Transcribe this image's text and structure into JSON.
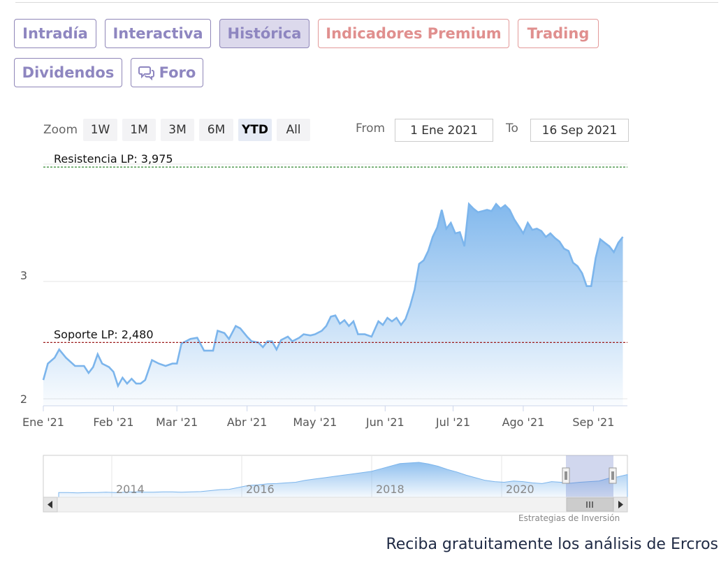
{
  "tabs": [
    {
      "label": "Intradía",
      "style": "purple"
    },
    {
      "label": "Interactiva",
      "style": "purple"
    },
    {
      "label": "Histórica",
      "style": "purple",
      "active": true
    },
    {
      "label": "Indicadores Premium",
      "style": "red"
    },
    {
      "label": "Trading",
      "style": "red"
    },
    {
      "label": "Dividendos",
      "style": "purple"
    },
    {
      "label": "Foro",
      "style": "purple",
      "icon": "chat-bubbles-icon"
    }
  ],
  "zoom": {
    "label": "Zoom",
    "buttons": [
      "1W",
      "1M",
      "3M",
      "6M",
      "YTD",
      "All"
    ],
    "selected": "YTD"
  },
  "range": {
    "from_label": "From",
    "from_value": "1 Ene 2021",
    "to_label": "To",
    "to_value": "16 Sep 2021"
  },
  "chart_data": {
    "type": "area",
    "x_tick_labels": [
      "Ene '21",
      "Feb '21",
      "Mar '21",
      "Abr '21",
      "May '21",
      "Jun '21",
      "Jul '21",
      "Ago '21",
      "Sep '21"
    ],
    "y_tick_labels": [
      "2",
      "3"
    ],
    "ylim": [
      1.95,
      4.0
    ],
    "x_range": [
      "2021-01-01",
      "2021-09-16"
    ],
    "grid": true,
    "series": [
      {
        "color": "#7cb5ec",
        "points": [
          [
            "2021-01-01",
            2.16
          ],
          [
            "2021-01-03",
            2.3
          ],
          [
            "2021-01-06",
            2.35
          ],
          [
            "2021-01-08",
            2.42
          ],
          [
            "2021-01-11",
            2.35
          ],
          [
            "2021-01-15",
            2.28
          ],
          [
            "2021-01-19",
            2.28
          ],
          [
            "2021-01-21",
            2.22
          ],
          [
            "2021-01-23",
            2.27
          ],
          [
            "2021-01-25",
            2.38
          ],
          [
            "2021-01-27",
            2.3
          ],
          [
            "2021-01-30",
            2.27
          ],
          [
            "2021-02-01",
            2.23
          ],
          [
            "2021-02-03",
            2.11
          ],
          [
            "2021-02-05",
            2.18
          ],
          [
            "2021-02-07",
            2.13
          ],
          [
            "2021-02-09",
            2.17
          ],
          [
            "2021-02-11",
            2.13
          ],
          [
            "2021-02-13",
            2.13
          ],
          [
            "2021-02-15",
            2.16
          ],
          [
            "2021-02-18",
            2.33
          ],
          [
            "2021-02-21",
            2.3
          ],
          [
            "2021-02-24",
            2.28
          ],
          [
            "2021-02-27",
            2.3
          ],
          [
            "2021-03-01",
            2.3
          ],
          [
            "2021-03-03",
            2.47
          ],
          [
            "2021-03-07",
            2.51
          ],
          [
            "2021-03-10",
            2.52
          ],
          [
            "2021-03-13",
            2.41
          ],
          [
            "2021-03-17",
            2.41
          ],
          [
            "2021-03-19",
            2.58
          ],
          [
            "2021-03-22",
            2.56
          ],
          [
            "2021-03-24",
            2.51
          ],
          [
            "2021-03-27",
            2.62
          ],
          [
            "2021-03-29",
            2.6
          ],
          [
            "2021-04-01",
            2.53
          ],
          [
            "2021-04-03",
            2.49
          ],
          [
            "2021-04-06",
            2.48
          ],
          [
            "2021-04-08",
            2.44
          ],
          [
            "2021-04-10",
            2.49
          ],
          [
            "2021-04-12",
            2.49
          ],
          [
            "2021-04-14",
            2.42
          ],
          [
            "2021-04-16",
            2.5
          ],
          [
            "2021-04-19",
            2.53
          ],
          [
            "2021-04-21",
            2.49
          ],
          [
            "2021-04-24",
            2.52
          ],
          [
            "2021-04-26",
            2.55
          ],
          [
            "2021-04-29",
            2.54
          ],
          [
            "2021-05-01",
            2.55
          ],
          [
            "2021-05-04",
            2.58
          ],
          [
            "2021-05-06",
            2.62
          ],
          [
            "2021-05-08",
            2.7
          ],
          [
            "2021-05-10",
            2.71
          ],
          [
            "2021-05-12",
            2.64
          ],
          [
            "2021-05-14",
            2.67
          ],
          [
            "2021-05-16",
            2.62
          ],
          [
            "2021-05-18",
            2.66
          ],
          [
            "2021-05-20",
            2.55
          ],
          [
            "2021-05-23",
            2.55
          ],
          [
            "2021-05-26",
            2.53
          ],
          [
            "2021-05-29",
            2.66
          ],
          [
            "2021-05-31",
            2.63
          ],
          [
            "2021-06-02",
            2.69
          ],
          [
            "2021-06-04",
            2.66
          ],
          [
            "2021-06-06",
            2.69
          ],
          [
            "2021-06-08",
            2.63
          ],
          [
            "2021-06-10",
            2.68
          ],
          [
            "2021-06-12",
            2.79
          ],
          [
            "2021-06-14",
            2.93
          ],
          [
            "2021-06-16",
            3.15
          ],
          [
            "2021-06-18",
            3.18
          ],
          [
            "2021-06-20",
            3.26
          ],
          [
            "2021-06-22",
            3.38
          ],
          [
            "2021-06-24",
            3.46
          ],
          [
            "2021-06-26",
            3.61
          ],
          [
            "2021-06-28",
            3.45
          ],
          [
            "2021-06-30",
            3.5
          ],
          [
            "2021-07-02",
            3.41
          ],
          [
            "2021-07-04",
            3.42
          ],
          [
            "2021-07-06",
            3.3
          ],
          [
            "2021-07-08",
            3.66
          ],
          [
            "2021-07-10",
            3.62
          ],
          [
            "2021-07-12",
            3.59
          ],
          [
            "2021-07-14",
            3.6
          ],
          [
            "2021-07-16",
            3.61
          ],
          [
            "2021-07-18",
            3.6
          ],
          [
            "2021-07-20",
            3.66
          ],
          [
            "2021-07-22",
            3.62
          ],
          [
            "2021-07-24",
            3.65
          ],
          [
            "2021-07-26",
            3.61
          ],
          [
            "2021-07-28",
            3.53
          ],
          [
            "2021-07-30",
            3.47
          ],
          [
            "2021-08-01",
            3.41
          ],
          [
            "2021-08-03",
            3.5
          ],
          [
            "2021-08-05",
            3.44
          ],
          [
            "2021-08-07",
            3.45
          ],
          [
            "2021-08-09",
            3.43
          ],
          [
            "2021-08-11",
            3.38
          ],
          [
            "2021-08-13",
            3.41
          ],
          [
            "2021-08-15",
            3.37
          ],
          [
            "2021-08-17",
            3.34
          ],
          [
            "2021-08-19",
            3.28
          ],
          [
            "2021-08-21",
            3.26
          ],
          [
            "2021-08-23",
            3.16
          ],
          [
            "2021-08-25",
            3.13
          ],
          [
            "2021-08-27",
            3.07
          ],
          [
            "2021-08-29",
            2.96
          ],
          [
            "2021-08-31",
            2.96
          ],
          [
            "2021-09-02",
            3.2
          ],
          [
            "2021-09-04",
            3.36
          ],
          [
            "2021-09-06",
            3.33
          ],
          [
            "2021-09-08",
            3.3
          ],
          [
            "2021-09-10",
            3.25
          ],
          [
            "2021-09-12",
            3.33
          ],
          [
            "2021-09-14",
            3.38
          ]
        ]
      }
    ],
    "plot_lines": [
      {
        "label": "Resistencia LP: 3,975",
        "value": 3.975,
        "color": "#1a7a1a"
      },
      {
        "label": "Soporte LP: 2,480",
        "value": 2.48,
        "color": "#9b1b1b"
      }
    ]
  },
  "navigator": {
    "year_labels": [
      "2014",
      "2016",
      "2018",
      "2020"
    ],
    "scroll_left_icon": "arrow-left-icon",
    "scroll_right_icon": "arrow-right-icon",
    "scroll_grip_icon": "grip-icon"
  },
  "credits": "Estrategias de Inversión",
  "footer": {
    "text": "Reciba gratuitamente los análisis de Ercros"
  }
}
